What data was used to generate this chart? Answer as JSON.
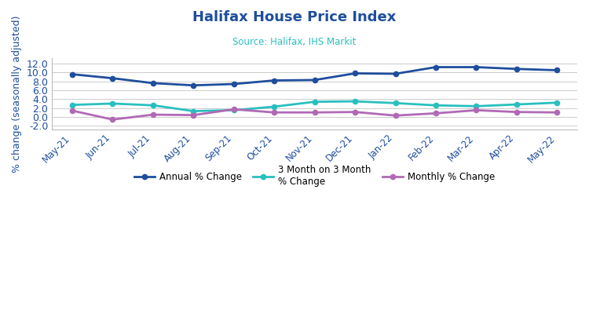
{
  "title": "Halifax House Price Index",
  "subtitle": "Source: Halifax, IHS Markit",
  "ylabel": "% change (seasonally adjusted)",
  "categories": [
    "May-21",
    "Jun-21",
    "Jul-21",
    "Aug-21",
    "Sep-21",
    "Oct-21",
    "Nov-21",
    "Dec-21",
    "Jan-22",
    "Feb-22",
    "Mar-22",
    "Apr-22",
    "May-22"
  ],
  "annual": [
    9.6,
    8.7,
    7.6,
    7.1,
    7.4,
    8.2,
    8.3,
    9.8,
    9.7,
    11.2,
    11.2,
    10.8,
    10.5
  ],
  "three_month": [
    2.7,
    3.0,
    2.6,
    1.3,
    1.5,
    2.3,
    3.4,
    3.5,
    3.1,
    2.6,
    2.4,
    2.8,
    3.2
  ],
  "monthly": [
    1.4,
    -0.6,
    0.5,
    0.4,
    1.7,
    1.0,
    1.0,
    1.1,
    0.3,
    0.8,
    1.5,
    1.1,
    1.0
  ],
  "annual_color": "#1f4e9c",
  "three_month_color": "#2abfbf",
  "monthly_color": "#b06ab4",
  "title_color": "#1f4e9c",
  "subtitle_color": "#2abfbf",
  "ylabel_color": "#1f4e9c",
  "tick_color": "#1f4e9c",
  "background_color": "#ffffff",
  "ylim": [
    -2.8,
    13.2
  ],
  "yticks": [
    -2.0,
    0.0,
    2.0,
    4.0,
    6.0,
    8.0,
    10.0,
    12.0
  ],
  "grid_color": "#cccccc",
  "legend_annual": "Annual % Change",
  "legend_3m": "3 Month on 3 Month\n% Change",
  "legend_monthly": "Monthly % Change"
}
